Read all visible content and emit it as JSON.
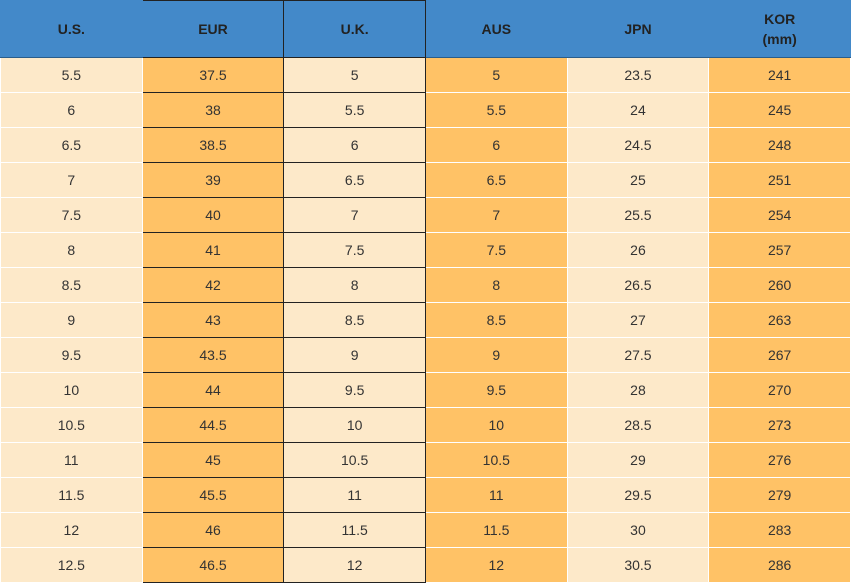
{
  "table": {
    "headers": [
      "U.S.",
      "EUR",
      "U.K.",
      "AUS",
      "JPN",
      "KOR\n(mm)"
    ],
    "rows": [
      [
        5.5,
        37.5,
        5,
        5,
        23.5,
        241
      ],
      [
        6,
        38,
        5.5,
        5.5,
        24,
        245
      ],
      [
        6.5,
        38.5,
        6,
        6,
        24.5,
        248
      ],
      [
        7,
        39,
        6.5,
        6.5,
        25,
        251
      ],
      [
        7.5,
        40,
        7,
        7,
        25.5,
        254
      ],
      [
        8,
        41,
        7.5,
        7.5,
        26,
        257
      ],
      [
        8.5,
        42,
        8,
        8,
        26.5,
        260
      ],
      [
        9,
        43,
        8.5,
        8.5,
        27,
        263
      ],
      [
        9.5,
        43.5,
        9,
        9,
        27.5,
        267
      ],
      [
        10,
        44,
        9.5,
        9.5,
        28,
        270
      ],
      [
        10.5,
        44.5,
        10,
        10,
        28.5,
        273
      ],
      [
        11,
        45,
        10.5,
        10.5,
        29,
        276
      ],
      [
        11.5,
        45.5,
        11,
        11,
        29.5,
        279
      ],
      [
        12,
        46,
        11.5,
        11.5,
        30,
        283
      ],
      [
        12.5,
        46.5,
        12,
        12,
        30.5,
        286
      ]
    ]
  }
}
